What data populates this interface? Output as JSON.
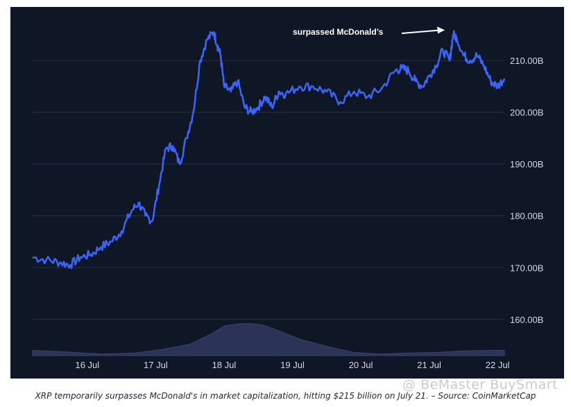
{
  "chart_data": {
    "type": "line",
    "subject": "XRP market capitalization",
    "x_tick_labels": [
      "16 Jul",
      "17 Jul",
      "18 Jul",
      "19 Jul",
      "20 Jul",
      "21 Jul",
      "22 Jul"
    ],
    "y_tick_labels": [
      "160.00B",
      "170.00B",
      "180.00B",
      "190.00B",
      "200.00B",
      "210.00B"
    ],
    "y_unit": "B (USD)",
    "xlim": [
      15.3,
      22.2
    ],
    "ylim": [
      153,
      219
    ],
    "y_position": "right",
    "grid": "horizontal",
    "series": [
      {
        "kind": "market_cap_line",
        "color": "#3d63f5",
        "x": [
          15.3,
          15.5,
          15.7,
          15.85,
          16.0,
          16.15,
          16.3,
          16.45,
          16.6,
          16.75,
          16.85,
          16.95,
          17.05,
          17.15,
          17.25,
          17.35,
          17.45,
          17.55,
          17.65,
          17.75,
          17.85,
          17.95,
          18.0,
          18.05,
          18.1,
          18.2,
          18.3,
          18.4,
          18.5,
          18.6,
          18.7,
          18.8,
          18.9,
          19.0,
          19.2,
          19.4,
          19.6,
          19.8,
          20.0,
          20.2,
          20.4,
          20.6,
          20.7,
          20.8,
          20.9,
          21.0,
          21.1,
          21.2,
          21.3,
          21.4,
          21.45,
          21.5,
          21.6,
          21.7,
          21.8,
          21.9,
          22.0,
          22.1,
          22.2
        ],
        "values": [
          172,
          171.5,
          171,
          170.5,
          172,
          172.5,
          174,
          175,
          177,
          181,
          182.5,
          180,
          179,
          186,
          193,
          193.5,
          190,
          195,
          200,
          210,
          214,
          215.5,
          213,
          211,
          205,
          204,
          206,
          201,
          200,
          201,
          203,
          201,
          204,
          203.5,
          205,
          205,
          204,
          202,
          204,
          203,
          204.5,
          208,
          208.5,
          208,
          206,
          205,
          207,
          209,
          212,
          210,
          215,
          214.5,
          211,
          210,
          211,
          209,
          206,
          205,
          206.5
        ]
      },
      {
        "kind": "volume_area",
        "color": "#2b3356",
        "x": [
          15.3,
          15.8,
          16.3,
          16.8,
          17.2,
          17.6,
          17.9,
          18.1,
          18.3,
          18.5,
          18.7,
          18.9,
          19.2,
          19.6,
          20.0,
          20.4,
          20.8,
          21.2,
          21.6,
          22.0,
          22.2
        ],
        "values": [
          154,
          153.7,
          153.3,
          153.5,
          154.2,
          155.2,
          157.1,
          158.7,
          159.1,
          159.2,
          158.8,
          157.8,
          156.2,
          154.8,
          153.6,
          153.3,
          153.5,
          153.6,
          153.9,
          154,
          154
        ]
      }
    ],
    "annotation": {
      "text": "surpassed McDonald’s",
      "points_to": [
        21.45,
        215.6
      ]
    }
  },
  "caption": "XRP temporarily surpasses McDonald's in market capitalization, hitting $215 billion on July 21. – Source: CoinMarketCap",
  "watermark": "@ BeMaster BuySmart"
}
